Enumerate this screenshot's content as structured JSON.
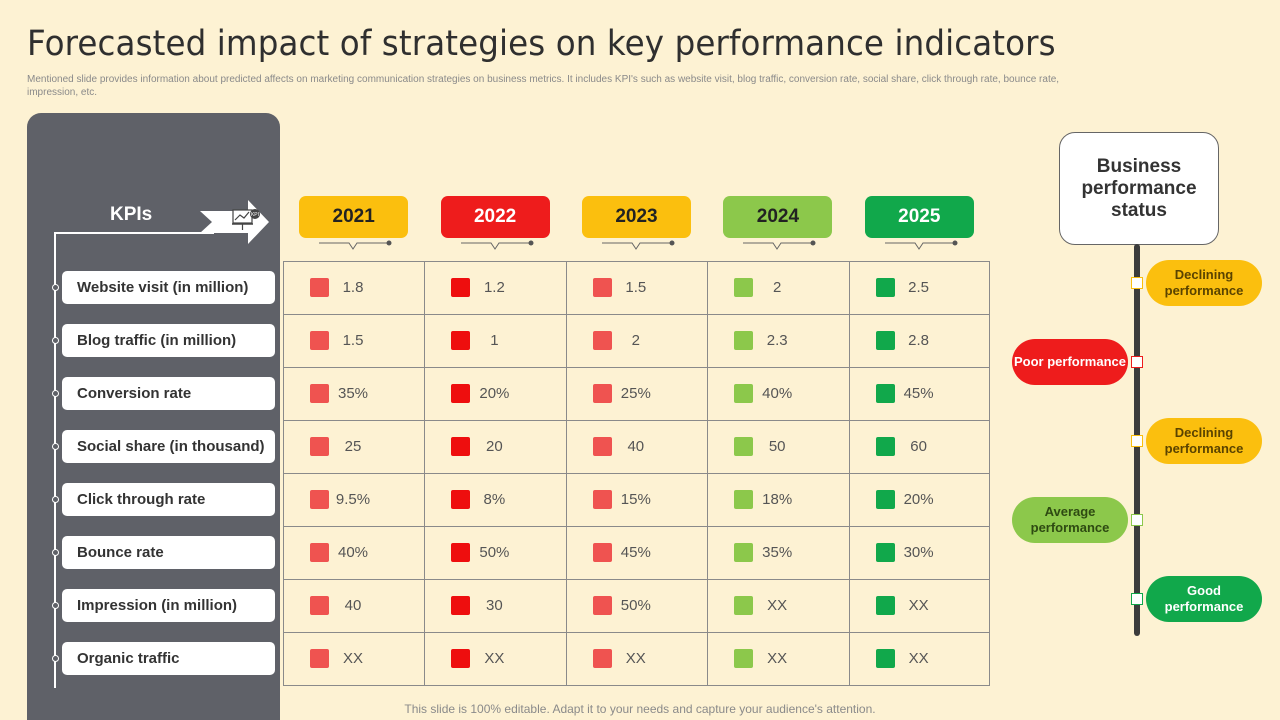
{
  "title": "Forecasted impact of strategies on key performance indicators",
  "subtitle": "Mentioned slide provides information about predicted affects on marketing communication strategies on business metrics. It includes KPI's  such as website visit, blog traffic, conversion rate, social share, click through rate, bounce rate, impression, etc.",
  "footer": "This slide is 100% editable. Adapt it to your needs and capture your audience's attention.",
  "kpi_header": "KPIs",
  "kpi_icon": "kpi-presentation-icon",
  "kpi_icon_text": "KPI",
  "kpis": [
    "Website visit (in million)",
    "Blog traffic (in million)",
    "Conversion rate",
    "Social share (in thousand)",
    "Click through rate",
    "Bounce rate",
    "Impression (in million)",
    "Organic traffic"
  ],
  "years": [
    {
      "label": "2021",
      "badge_color": "#fbbf0e",
      "square_color": "#ef5350"
    },
    {
      "label": "2022",
      "badge_color": "#ee1c1c",
      "square_color": "#ee0e0e"
    },
    {
      "label": "2023",
      "badge_color": "#fbbf0e",
      "square_color": "#ef5350"
    },
    {
      "label": "2024",
      "badge_color": "#8cc84b",
      "square_color": "#8cc84b"
    },
    {
      "label": "2025",
      "badge_color": "#11a84b",
      "square_color": "#11a84b"
    }
  ],
  "table": [
    [
      "1.8",
      "1.2",
      "1.5",
      "2",
      "2.5"
    ],
    [
      "1.5",
      "1",
      "2",
      "2.3",
      "2.8"
    ],
    [
      "35%",
      "20%",
      "25%",
      "40%",
      "45%"
    ],
    [
      "25",
      "20",
      "40",
      "50",
      "60"
    ],
    [
      "9.5%",
      "8%",
      "15%",
      "18%",
      "20%"
    ],
    [
      "40%",
      "50%",
      "45%",
      "35%",
      "30%"
    ],
    [
      "40",
      "30",
      "50%",
      "XX",
      "XX"
    ],
    [
      "XX",
      "XX",
      "XX",
      "XX",
      "XX"
    ]
  ],
  "status_title": "Business performance status",
  "status_items": [
    {
      "label": "Declining performance",
      "side": "right",
      "color": "#fbbf0e",
      "text_color": "#5a4300"
    },
    {
      "label": "Poor performance",
      "side": "left",
      "color": "#ee1c1c",
      "text_color": "#ffffff"
    },
    {
      "label": "Declining performance",
      "side": "right",
      "color": "#fbbf0e",
      "text_color": "#5a4300"
    },
    {
      "label": "Average performance",
      "side": "left",
      "color": "#8cc84b",
      "text_color": "#2e4a12"
    },
    {
      "label": "Good performance",
      "side": "right",
      "color": "#11a84b",
      "text_color": "#ffffff"
    }
  ]
}
